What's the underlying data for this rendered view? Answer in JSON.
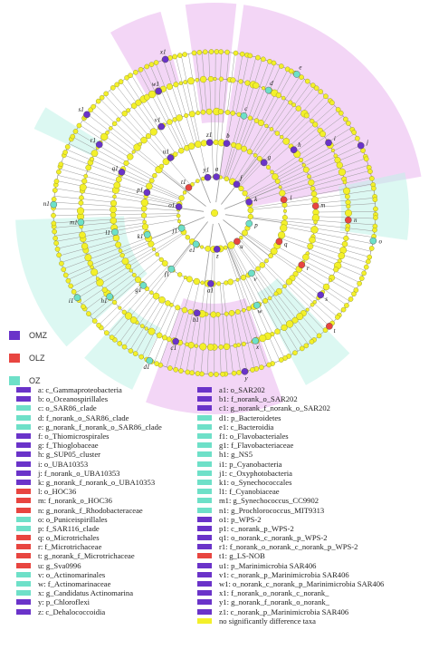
{
  "colors": {
    "OMZ": "#6a33c9",
    "OLZ": "#e84540",
    "OZ": "#6ee0c8",
    "none": "#f3f02a",
    "node_stroke": "#8a8a20",
    "branch": "#9a9a9a",
    "ring": "#6e6e6e",
    "highlight_OMZ": "#eab5ee",
    "highlight_OZ": "#bff3e8"
  },
  "groups": [
    {
      "key": "OMZ",
      "label": "OMZ",
      "color": "#6a33c9"
    },
    {
      "key": "OLZ",
      "label": "OLZ",
      "color": "#e84540"
    },
    {
      "key": "OZ",
      "label": "OZ",
      "color": "#6ee0c8"
    }
  ],
  "taxa_col1": [
    {
      "label": "a: c_Gammaproteobacteria",
      "group": "OMZ"
    },
    {
      "label": "b: o_Oceanospirillales",
      "group": "OMZ"
    },
    {
      "label": "c: o_SAR86_clade",
      "group": "OZ"
    },
    {
      "label": "d: f_norank_o_SAR86_clade",
      "group": "OZ"
    },
    {
      "label": "e: g_norank_f_norank_o_SAR86_clade",
      "group": "OZ"
    },
    {
      "label": "f: o_Thiomicrospirales",
      "group": "OMZ"
    },
    {
      "label": "g: f_Thioglobaceae",
      "group": "OMZ"
    },
    {
      "label": "h: g_SUP05_cluster",
      "group": "OMZ"
    },
    {
      "label": "i: o_UBA10353",
      "group": "OMZ"
    },
    {
      "label": "j: f_norank_o_UBA10353",
      "group": "OMZ"
    },
    {
      "label": "k: g_norank_f_norank_o_UBA10353",
      "group": "OMZ"
    },
    {
      "label": "l: o_HOC36",
      "group": "OLZ"
    },
    {
      "label": "m: f_norank_o_HOC36",
      "group": "OLZ"
    },
    {
      "label": "n: g_norank_f_Rhodobacteraceae",
      "group": "OLZ"
    },
    {
      "label": "o: o_Puniceispirillales",
      "group": "OZ"
    },
    {
      "label": "p: f_SAR116_clade",
      "group": "OZ"
    },
    {
      "label": "q: o_Microtrichales",
      "group": "OLZ"
    },
    {
      "label": "r: f_Microtrichaceae",
      "group": "OLZ"
    },
    {
      "label": "t: g_norank_f_Microtrichaceae",
      "group": "OLZ"
    },
    {
      "label": "u: g_Sva0996",
      "group": "OLZ"
    },
    {
      "label": "v: o_Actinomarinales",
      "group": "OZ"
    },
    {
      "label": "w: f_Actinomarinaceae",
      "group": "OZ"
    },
    {
      "label": "x: g_Candidatus Actinomarina",
      "group": "OZ"
    },
    {
      "label": "y: p_Chloroflexi",
      "group": "OMZ"
    },
    {
      "label": "z: c_Dehalococcoidia",
      "group": "OMZ"
    }
  ],
  "taxa_col2": [
    {
      "label": "a1: o_SAR202",
      "group": "OMZ"
    },
    {
      "label": "b1: f_norank_o_SAR202",
      "group": "OMZ"
    },
    {
      "label": "c1: g_norank_f_norank_o_SAR202",
      "group": "OMZ"
    },
    {
      "label": "d1: p_Bacteroidetes",
      "group": "OZ"
    },
    {
      "label": "e1: c_Bacteroidia",
      "group": "OZ"
    },
    {
      "label": "f1: o_Flavobacteriales",
      "group": "OZ"
    },
    {
      "label": "g1: f_Flavobacteriaceae",
      "group": "OZ"
    },
    {
      "label": "h1: g_NS5",
      "group": "OZ"
    },
    {
      "label": "i1: p_Cyanobacteria",
      "group": "OZ"
    },
    {
      "label": "j1: c_Oxyphotobacteria",
      "group": "OZ"
    },
    {
      "label": "k1: o_Synechococcales",
      "group": "OZ"
    },
    {
      "label": "l1: f_Cyanobiaceae",
      "group": "OZ"
    },
    {
      "label": "m1: g_Synechococcus_CC9902",
      "group": "OZ"
    },
    {
      "label": "n1: g_Prochlorococcus_MIT9313",
      "group": "OZ"
    },
    {
      "label": "o1: p_WPS-2",
      "group": "OMZ"
    },
    {
      "label": "p1: c_norank_p_WPS-2",
      "group": "OMZ"
    },
    {
      "label": "q1: o_norank_c_norank_p_WPS-2",
      "group": "OMZ"
    },
    {
      "label": "r1: f_norank_o_norank_c_norank_p_WPS-2",
      "group": "OMZ"
    },
    {
      "label": "t1: g_LS-NOB",
      "group": "OLZ"
    },
    {
      "label": "u1: p_Marinimicrobia SAR406",
      "group": "OMZ"
    },
    {
      "label": "v1: c_norank_p_Marinimicrobia SAR406",
      "group": "OMZ"
    },
    {
      "label": "w1: o_norank_c_norank_p_Marinimicrobia SAR406",
      "group": "OMZ"
    },
    {
      "label": "x1: f_norank_o_norank_c_norank_",
      "group": "OMZ"
    },
    {
      "label": "y1: g_norank_f_norank_o_norank_",
      "group": "OMZ"
    },
    {
      "label": "z1: c_norank_p_Marinimicrobia SAR406",
      "group": "OMZ"
    },
    {
      "label": "no significantly difference taxa",
      "group": "none"
    }
  ],
  "node_labels": [
    "a",
    "b",
    "c",
    "d",
    "e",
    "f",
    "g",
    "h",
    "i",
    "j",
    "k",
    "l",
    "m",
    "n",
    "o",
    "p",
    "q",
    "r",
    "s",
    "t",
    "u",
    "v",
    "w",
    "x",
    "y",
    "z",
    "a1",
    "b1",
    "c1",
    "d1",
    "e1",
    "f1",
    "g1",
    "h1",
    "i1",
    "j1",
    "k1",
    "l1",
    "m1",
    "n1",
    "o1",
    "p1",
    "q1",
    "r1",
    "s1",
    "t1",
    "u1",
    "v1",
    "w1",
    "x1",
    "y1",
    "z1"
  ]
}
